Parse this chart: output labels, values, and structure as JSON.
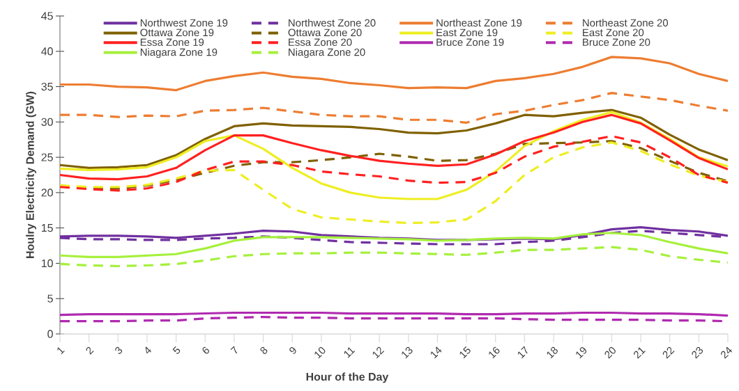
{
  "chart_data": {
    "type": "line",
    "xlabel": "Hour of the Day",
    "ylabel": "Houlry Electricity Demand (GW)",
    "categories": [
      "1",
      "2",
      "3",
      "4",
      "5",
      "6",
      "7",
      "8",
      "9",
      "10",
      "11",
      "12",
      "13",
      "14",
      "15",
      "16",
      "17",
      "18",
      "19",
      "20",
      "21",
      "22",
      "23",
      "24"
    ],
    "ylim": [
      0,
      45
    ],
    "yticks": [
      0,
      5,
      10,
      15,
      20,
      25,
      30,
      35,
      40,
      45
    ],
    "grid": false,
    "legend": "top",
    "series": [
      {
        "name": "Northwest Zone 19",
        "color": "#7030a0",
        "line_style": "solid",
        "values": [
          13.8,
          13.9,
          13.9,
          13.8,
          13.6,
          13.9,
          14.2,
          14.6,
          14.5,
          14.0,
          13.8,
          13.6,
          13.5,
          13.3,
          13.3,
          13.4,
          13.5,
          13.4,
          14.0,
          14.8,
          15.1,
          14.7,
          14.5,
          13.9
        ]
      },
      {
        "name": "Northwest Zone 20",
        "color": "#7030a0",
        "line_style": "dashed",
        "values": [
          13.6,
          13.4,
          13.4,
          13.3,
          13.3,
          13.5,
          13.6,
          13.8,
          13.6,
          13.3,
          13.0,
          12.9,
          12.8,
          12.7,
          12.7,
          12.7,
          13.0,
          13.2,
          13.7,
          14.3,
          14.6,
          14.3,
          14.0,
          13.7
        ]
      },
      {
        "name": "Northeast Zone 19",
        "color": "#ed7d31",
        "line_style": "solid",
        "values": [
          35.3,
          35.3,
          35.0,
          34.9,
          34.5,
          35.8,
          36.5,
          37.0,
          36.4,
          36.1,
          35.5,
          35.2,
          34.8,
          34.9,
          34.8,
          35.8,
          36.2,
          36.8,
          37.8,
          39.2,
          39.0,
          38.3,
          36.8,
          35.8
        ]
      },
      {
        "name": "Northeast Zone 20",
        "color": "#ed7d31",
        "line_style": "dashed",
        "values": [
          31.0,
          31.0,
          30.7,
          30.9,
          30.8,
          31.6,
          31.7,
          32.0,
          31.5,
          31.0,
          30.8,
          30.8,
          30.3,
          30.3,
          29.9,
          31.1,
          31.6,
          32.4,
          33.1,
          34.1,
          33.6,
          33.1,
          32.3,
          31.6
        ]
      },
      {
        "name": "Ottawa Zone 19",
        "color": "#7f6000",
        "line_style": "solid",
        "values": [
          23.9,
          23.5,
          23.6,
          23.9,
          25.3,
          27.6,
          29.4,
          29.8,
          29.5,
          29.4,
          29.3,
          29.0,
          28.5,
          28.4,
          28.8,
          29.8,
          31.0,
          30.8,
          31.3,
          31.7,
          30.6,
          28.2,
          26.1,
          24.6
        ]
      },
      {
        "name": "Ottawa Zone 20",
        "color": "#7f6000",
        "line_style": "dashed",
        "values": [
          21.0,
          20.6,
          20.6,
          21.0,
          21.8,
          22.8,
          23.8,
          24.3,
          24.3,
          24.6,
          25.0,
          25.5,
          25.1,
          24.5,
          24.6,
          25.5,
          26.9,
          27.0,
          27.1,
          27.3,
          26.3,
          24.5,
          22.8,
          21.6
        ]
      },
      {
        "name": "East Zone 19",
        "color": "#eeee22",
        "line_style": "solid",
        "values": [
          23.4,
          23.2,
          23.3,
          23.6,
          25.0,
          27.3,
          28.1,
          26.2,
          23.5,
          21.3,
          20.0,
          19.3,
          19.1,
          19.1,
          20.4,
          23.0,
          26.6,
          28.7,
          30.3,
          31.4,
          29.9,
          27.6,
          25.0,
          23.7
        ]
      },
      {
        "name": "East Zone 20",
        "color": "#eeee22",
        "line_style": "dashed",
        "values": [
          21.0,
          20.8,
          20.8,
          21.1,
          22.0,
          23.1,
          23.2,
          20.4,
          17.7,
          16.5,
          16.2,
          15.9,
          15.7,
          15.8,
          16.2,
          18.8,
          22.5,
          25.0,
          26.4,
          27.1,
          25.9,
          24.0,
          22.4,
          21.5
        ]
      },
      {
        "name": "Essa Zone 19",
        "color": "#ff2020",
        "line_style": "solid",
        "values": [
          22.5,
          22.0,
          21.9,
          22.3,
          23.5,
          26.0,
          28.1,
          28.1,
          27.0,
          26.0,
          25.2,
          24.5,
          24.1,
          23.8,
          24.0,
          25.4,
          27.3,
          28.5,
          30.0,
          31.0,
          29.8,
          27.4,
          24.9,
          23.3
        ]
      },
      {
        "name": "Essa Zone 20",
        "color": "#ff2020",
        "line_style": "dashed",
        "values": [
          20.8,
          20.5,
          20.3,
          20.6,
          21.5,
          23.2,
          24.4,
          24.4,
          23.9,
          23.0,
          22.6,
          22.3,
          21.7,
          21.4,
          21.5,
          22.8,
          25.1,
          26.5,
          27.2,
          28.0,
          27.1,
          25.0,
          22.5,
          21.4
        ]
      },
      {
        "name": "Bruce Zone 19",
        "color": "#b02ab0",
        "line_style": "solid",
        "values": [
          2.7,
          2.8,
          2.8,
          2.8,
          2.8,
          2.9,
          3.0,
          3.0,
          3.0,
          3.0,
          2.9,
          2.9,
          2.9,
          2.9,
          2.8,
          2.8,
          2.9,
          2.9,
          3.0,
          3.0,
          2.9,
          2.9,
          2.8,
          2.6
        ]
      },
      {
        "name": "Bruce Zone 20",
        "color": "#b02ab0",
        "line_style": "dashed",
        "values": [
          1.8,
          1.8,
          1.8,
          1.9,
          1.9,
          2.2,
          2.3,
          2.4,
          2.3,
          2.3,
          2.2,
          2.2,
          2.2,
          2.2,
          2.2,
          2.2,
          2.1,
          2.0,
          2.0,
          2.0,
          2.0,
          1.9,
          1.9,
          1.8
        ]
      },
      {
        "name": "Niagara Zone 19",
        "color": "#a6f03c",
        "line_style": "solid",
        "values": [
          11.1,
          10.9,
          10.9,
          11.1,
          11.3,
          12.1,
          13.2,
          13.7,
          13.7,
          13.7,
          13.6,
          13.5,
          13.4,
          13.2,
          13.3,
          13.5,
          13.6,
          13.5,
          14.1,
          14.3,
          14.0,
          13.0,
          12.1,
          11.4
        ]
      },
      {
        "name": "Niagara Zone 20",
        "color": "#a6f03c",
        "line_style": "dashed",
        "values": [
          9.9,
          9.7,
          9.6,
          9.7,
          9.9,
          10.4,
          11.0,
          11.3,
          11.4,
          11.4,
          11.5,
          11.5,
          11.4,
          11.3,
          11.2,
          11.5,
          11.9,
          11.9,
          12.1,
          12.3,
          11.9,
          11.0,
          10.5,
          10.1
        ]
      }
    ]
  }
}
